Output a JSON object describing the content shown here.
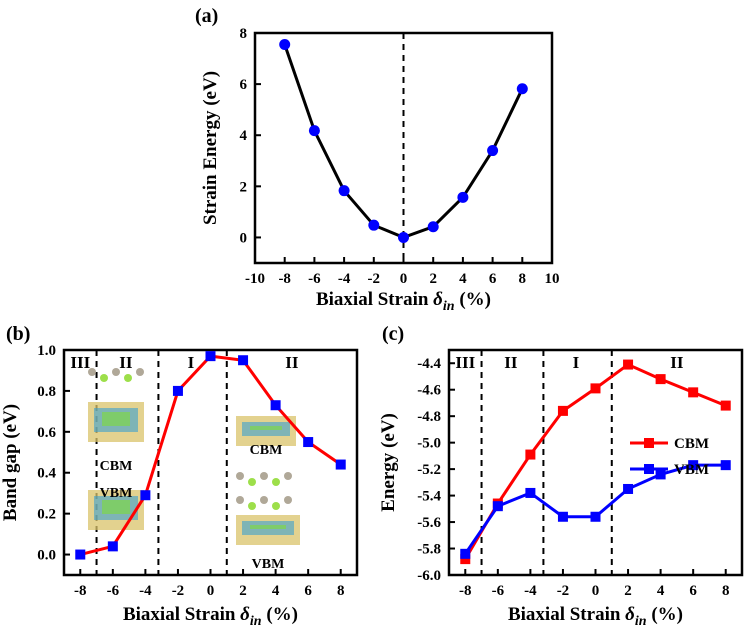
{
  "figure": {
    "panels": [
      "(a)",
      "(b)",
      "(c)"
    ]
  },
  "chart_data": [
    {
      "panel": "(a)",
      "type": "line",
      "xlabel": "Biaxial Strain δin (%)",
      "xlabel_main": "Biaxial Strain",
      "xlabel_symbol": "δ",
      "xlabel_sub": "in",
      "xlabel_unit": "(%)",
      "ylabel": "Strain Energy (eV)",
      "xlim": [
        -10,
        10
      ],
      "ylim": [
        -1,
        8
      ],
      "xticks": [
        -10,
        -8,
        -6,
        -4,
        -2,
        0,
        2,
        4,
        6,
        8,
        10
      ],
      "yticks": [
        0,
        2,
        4,
        6,
        8
      ],
      "x": [
        -8,
        -6,
        -4,
        -2,
        0,
        2,
        4,
        6,
        8
      ],
      "series": [
        {
          "values": [
            7.55,
            4.18,
            1.83,
            0.48,
            0.0,
            0.42,
            1.57,
            3.4,
            5.82
          ],
          "color": "#0000ff",
          "line_color": "#000000",
          "marker": "circle"
        }
      ],
      "vline_x": 0
    },
    {
      "panel": "(b)",
      "type": "line",
      "xlabel": "Biaxial Strain δin (%)",
      "xlabel_main": "Biaxial Strain",
      "xlabel_symbol": "δ",
      "xlabel_sub": "in",
      "xlabel_unit": "(%)",
      "ylabel": "Band gap (eV)",
      "xlim": [
        -9,
        9
      ],
      "ylim": [
        -0.1,
        1.0
      ],
      "xticks": [
        -8,
        -6,
        -4,
        -2,
        0,
        2,
        4,
        6,
        8
      ],
      "yticks": [
        0.0,
        0.2,
        0.4,
        0.6,
        0.8,
        1.0
      ],
      "yticklabels": [
        "0.0",
        "0.2",
        "0.4",
        "0.6",
        "0.8",
        "1.0"
      ],
      "x": [
        -8,
        -6,
        -4,
        -2,
        0,
        2,
        4,
        6,
        8
      ],
      "series": [
        {
          "values": [
            0.0,
            0.04,
            0.29,
            0.8,
            0.97,
            0.95,
            0.73,
            0.55,
            0.44
          ],
          "color": "#0000ff",
          "line_color": "#ff0000",
          "marker": "square"
        }
      ],
      "vlines_x": [
        -7,
        -3.2,
        1
      ],
      "regions": [
        {
          "label": "III",
          "x": -8
        },
        {
          "label": "II",
          "x": -5.2
        },
        {
          "label": "I",
          "x": -1.2
        },
        {
          "label": "II",
          "x": 5
        }
      ],
      "insets": [
        {
          "label": "CBM"
        },
        {
          "label": "VBM"
        },
        {
          "label": "CBM"
        },
        {
          "label": "VBM"
        }
      ]
    },
    {
      "panel": "(c)",
      "type": "line",
      "xlabel": "Biaxial Strain δin (%)",
      "xlabel_main": "Biaxial Strain",
      "xlabel_symbol": "δ",
      "xlabel_sub": "in",
      "xlabel_unit": "(%)",
      "ylabel": "Energy (eV)",
      "xlim": [
        -9,
        9
      ],
      "ylim": [
        -6.0,
        -4.3
      ],
      "xticks": [
        -8,
        -6,
        -4,
        -2,
        0,
        2,
        4,
        6,
        8
      ],
      "yticks": [
        -6.0,
        -5.8,
        -5.6,
        -5.4,
        -5.2,
        -5.0,
        -4.8,
        -4.6,
        -4.4
      ],
      "yticklabels": [
        "-6.0",
        "-5.8",
        "-5.6",
        "-5.4",
        "-5.2",
        "-5.0",
        "-4.8",
        "-4.6",
        "-4.4"
      ],
      "x": [
        -8,
        -6,
        -4,
        -2,
        0,
        2,
        4,
        6,
        8
      ],
      "series": [
        {
          "name": "CBM",
          "values": [
            -5.88,
            -5.46,
            -5.09,
            -4.76,
            -4.59,
            -4.41,
            -4.52,
            -4.62,
            -4.72
          ],
          "color": "#ff0000",
          "marker": "square"
        },
        {
          "name": "VBM",
          "values": [
            -5.84,
            -5.48,
            -5.38,
            -5.56,
            -5.56,
            -5.35,
            -5.24,
            -5.17,
            -5.17
          ],
          "color": "#0000ff",
          "marker": "square"
        }
      ],
      "vlines_x": [
        -7,
        -3.2,
        1
      ],
      "regions": [
        {
          "label": "III",
          "x": -8
        },
        {
          "label": "II",
          "x": -5.2
        },
        {
          "label": "I",
          "x": -1.2
        },
        {
          "label": "II",
          "x": 5
        }
      ],
      "legend": "right"
    }
  ]
}
